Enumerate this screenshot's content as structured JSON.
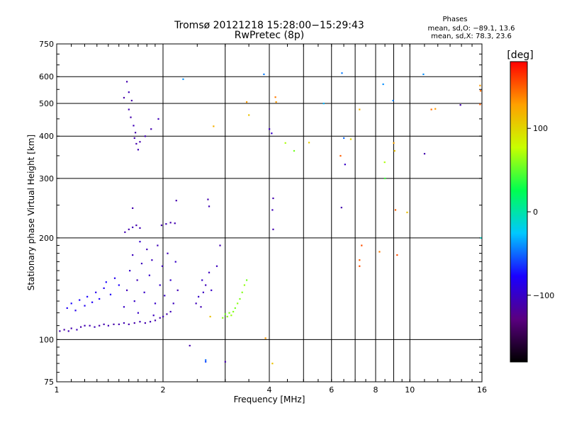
{
  "chart_data": {
    "type": "scatter",
    "title": "Tromsø 20121218 15:28:00−15:29:43",
    "subtitle": "RwPretec (8p)",
    "xlabel": "Frequency [MHz]",
    "ylabel": "Stationary phase Virtual Height [km]",
    "xscale": "log",
    "yscale": "log",
    "xlim": [
      1,
      16
    ],
    "ylim": [
      75,
      750
    ],
    "grid": true,
    "xticks": [
      1,
      2,
      4,
      6,
      8,
      10,
      16
    ],
    "xtick_labels": [
      "1",
      "2",
      "4",
      "6",
      "8",
      "10",
      "16"
    ],
    "x_minor_gridlines": [
      3,
      5,
      7,
      9
    ],
    "yticks": [
      75,
      100,
      200,
      300,
      400,
      500,
      600,
      750
    ],
    "ytick_labels": [
      "75",
      "100",
      "200",
      "300",
      "400",
      "500",
      "600",
      "750"
    ],
    "phases_box": {
      "title": "Phases",
      "line_o": "mean, sd,O: −89.1, 13.6",
      "line_x": "mean, sd,X: 78.3, 23.6"
    },
    "colorbar": {
      "label": "[deg]",
      "ticks": [
        100,
        0,
        -100
      ],
      "tick_labels": [
        "100",
        "0",
        "−100"
      ],
      "range": [
        -180,
        180
      ],
      "stops": [
        "#000000",
        "#5a0080",
        "#1a00ff",
        "#00c8ff",
        "#00ff50",
        "#c8ff00",
        "#ffa000",
        "#ff0000"
      ]
    },
    "points": [
      {
        "x": 1.02,
        "y": 106,
        "p": -110
      },
      {
        "x": 1.05,
        "y": 107,
        "p": -112
      },
      {
        "x": 1.08,
        "y": 106,
        "p": -108
      },
      {
        "x": 1.1,
        "y": 108,
        "p": -110
      },
      {
        "x": 1.14,
        "y": 107,
        "p": -105
      },
      {
        "x": 1.17,
        "y": 109,
        "p": -112
      },
      {
        "x": 1.2,
        "y": 110,
        "p": -108
      },
      {
        "x": 1.24,
        "y": 110,
        "p": -110
      },
      {
        "x": 1.28,
        "y": 109,
        "p": -106
      },
      {
        "x": 1.32,
        "y": 110,
        "p": -112
      },
      {
        "x": 1.36,
        "y": 111,
        "p": -110
      },
      {
        "x": 1.4,
        "y": 110,
        "p": -108
      },
      {
        "x": 1.45,
        "y": 111,
        "p": -112
      },
      {
        "x": 1.5,
        "y": 111,
        "p": -110
      },
      {
        "x": 1.55,
        "y": 112,
        "p": -108
      },
      {
        "x": 1.6,
        "y": 111,
        "p": -110
      },
      {
        "x": 1.66,
        "y": 112,
        "p": -112
      },
      {
        "x": 1.72,
        "y": 113,
        "p": -108
      },
      {
        "x": 1.78,
        "y": 112,
        "p": -110
      },
      {
        "x": 1.84,
        "y": 113,
        "p": -106
      },
      {
        "x": 1.9,
        "y": 114,
        "p": -110
      },
      {
        "x": 1.96,
        "y": 116,
        "p": -112
      },
      {
        "x": 2.0,
        "y": 117,
        "p": -108
      },
      {
        "x": 2.05,
        "y": 119,
        "p": -110
      },
      {
        "x": 2.1,
        "y": 121,
        "p": -106
      },
      {
        "x": 1.07,
        "y": 124,
        "p": -80
      },
      {
        "x": 1.1,
        "y": 128,
        "p": -75
      },
      {
        "x": 1.13,
        "y": 122,
        "p": -85
      },
      {
        "x": 1.16,
        "y": 131,
        "p": -78
      },
      {
        "x": 1.2,
        "y": 126,
        "p": -82
      },
      {
        "x": 1.22,
        "y": 134,
        "p": -76
      },
      {
        "x": 1.26,
        "y": 129,
        "p": -80
      },
      {
        "x": 1.29,
        "y": 138,
        "p": -84
      },
      {
        "x": 1.32,
        "y": 132,
        "p": -78
      },
      {
        "x": 1.36,
        "y": 142,
        "p": -82
      },
      {
        "x": 1.38,
        "y": 148,
        "p": -76
      },
      {
        "x": 1.42,
        "y": 136,
        "p": -80
      },
      {
        "x": 1.46,
        "y": 152,
        "p": -84
      },
      {
        "x": 1.5,
        "y": 145,
        "p": -78
      },
      {
        "x": 1.55,
        "y": 125,
        "p": -100
      },
      {
        "x": 1.58,
        "y": 140,
        "p": -105
      },
      {
        "x": 1.61,
        "y": 160,
        "p": -98
      },
      {
        "x": 1.64,
        "y": 178,
        "p": -104
      },
      {
        "x": 1.66,
        "y": 130,
        "p": -100
      },
      {
        "x": 1.69,
        "y": 150,
        "p": -106
      },
      {
        "x": 1.72,
        "y": 195,
        "p": -98
      },
      {
        "x": 1.74,
        "y": 168,
        "p": -104
      },
      {
        "x": 1.77,
        "y": 138,
        "p": -100
      },
      {
        "x": 1.8,
        "y": 185,
        "p": -106
      },
      {
        "x": 1.83,
        "y": 155,
        "p": -98
      },
      {
        "x": 1.86,
        "y": 172,
        "p": -104
      },
      {
        "x": 1.9,
        "y": 128,
        "p": -100
      },
      {
        "x": 1.93,
        "y": 190,
        "p": -106
      },
      {
        "x": 1.96,
        "y": 145,
        "p": -98
      },
      {
        "x": 1.99,
        "y": 165,
        "p": -104
      },
      {
        "x": 2.02,
        "y": 135,
        "p": -100
      },
      {
        "x": 2.06,
        "y": 180,
        "p": -106
      },
      {
        "x": 2.1,
        "y": 150,
        "p": -98
      },
      {
        "x": 2.14,
        "y": 128,
        "p": -104
      },
      {
        "x": 2.17,
        "y": 170,
        "p": -100
      },
      {
        "x": 2.2,
        "y": 140,
        "p": -106
      },
      {
        "x": 1.7,
        "y": 120,
        "p": -100
      },
      {
        "x": 1.88,
        "y": 118,
        "p": -104
      },
      {
        "x": 1.56,
        "y": 208,
        "p": -108
      },
      {
        "x": 1.6,
        "y": 212,
        "p": -110
      },
      {
        "x": 1.64,
        "y": 215,
        "p": -106
      },
      {
        "x": 1.68,
        "y": 218,
        "p": -110
      },
      {
        "x": 1.72,
        "y": 214,
        "p": -108
      },
      {
        "x": 1.98,
        "y": 218,
        "p": -110
      },
      {
        "x": 2.04,
        "y": 220,
        "p": -106
      },
      {
        "x": 2.1,
        "y": 222,
        "p": -110
      },
      {
        "x": 2.16,
        "y": 221,
        "p": -108
      },
      {
        "x": 1.64,
        "y": 245,
        "p": -110
      },
      {
        "x": 1.58,
        "y": 580,
        "p": -110
      },
      {
        "x": 1.6,
        "y": 540,
        "p": -105
      },
      {
        "x": 1.63,
        "y": 510,
        "p": -112
      },
      {
        "x": 1.6,
        "y": 480,
        "p": -108
      },
      {
        "x": 1.62,
        "y": 455,
        "p": -110
      },
      {
        "x": 1.65,
        "y": 430,
        "p": -106
      },
      {
        "x": 1.67,
        "y": 410,
        "p": -112
      },
      {
        "x": 1.66,
        "y": 395,
        "p": -108
      },
      {
        "x": 1.68,
        "y": 380,
        "p": -110
      },
      {
        "x": 1.7,
        "y": 365,
        "p": -106
      },
      {
        "x": 1.72,
        "y": 385,
        "p": -110
      },
      {
        "x": 1.78,
        "y": 400,
        "p": -108
      },
      {
        "x": 1.85,
        "y": 420,
        "p": -110
      },
      {
        "x": 1.94,
        "y": 450,
        "p": -106
      },
      {
        "x": 1.55,
        "y": 520,
        "p": -112
      },
      {
        "x": 2.48,
        "y": 128,
        "p": -105
      },
      {
        "x": 2.52,
        "y": 134,
        "p": -100
      },
      {
        "x": 2.56,
        "y": 125,
        "p": -108
      },
      {
        "x": 2.6,
        "y": 138,
        "p": -102
      },
      {
        "x": 2.64,
        "y": 145,
        "p": -106
      },
      {
        "x": 2.58,
        "y": 150,
        "p": -100
      },
      {
        "x": 2.7,
        "y": 158,
        "p": -104
      },
      {
        "x": 2.74,
        "y": 140,
        "p": -100
      },
      {
        "x": 2.84,
        "y": 165,
        "p": -104
      },
      {
        "x": 2.9,
        "y": 190,
        "p": -108
      },
      {
        "x": 2.95,
        "y": 116,
        "p": 60
      },
      {
        "x": 3.0,
        "y": 119,
        "p": 55
      },
      {
        "x": 3.04,
        "y": 117,
        "p": 62
      },
      {
        "x": 3.08,
        "y": 120,
        "p": 58
      },
      {
        "x": 3.12,
        "y": 118,
        "p": 65
      },
      {
        "x": 3.16,
        "y": 121,
        "p": 60
      },
      {
        "x": 3.2,
        "y": 124,
        "p": 56
      },
      {
        "x": 3.25,
        "y": 128,
        "p": 62
      },
      {
        "x": 3.3,
        "y": 132,
        "p": 58
      },
      {
        "x": 3.35,
        "y": 138,
        "p": 60
      },
      {
        "x": 3.4,
        "y": 145,
        "p": 64
      },
      {
        "x": 3.45,
        "y": 150,
        "p": 55
      },
      {
        "x": 2.72,
        "y": 117,
        "p": 110
      },
      {
        "x": 2.68,
        "y": 260,
        "p": -110
      },
      {
        "x": 2.7,
        "y": 248,
        "p": -106
      },
      {
        "x": 2.18,
        "y": 258,
        "p": -110
      },
      {
        "x": 2.28,
        "y": 590,
        "p": -40
      },
      {
        "x": 2.78,
        "y": 428,
        "p": 120
      },
      {
        "x": 3.45,
        "y": 505,
        "p": 130
      },
      {
        "x": 3.5,
        "y": 462,
        "p": 110
      },
      {
        "x": 4.0,
        "y": 420,
        "p": -105
      },
      {
        "x": 4.06,
        "y": 408,
        "p": -100
      },
      {
        "x": 4.1,
        "y": 262,
        "p": -110
      },
      {
        "x": 4.08,
        "y": 242,
        "p": -106
      },
      {
        "x": 4.1,
        "y": 212,
        "p": -110
      },
      {
        "x": 4.16,
        "y": 522,
        "p": 140
      },
      {
        "x": 4.18,
        "y": 505,
        "p": 130
      },
      {
        "x": 4.44,
        "y": 382,
        "p": 70
      },
      {
        "x": 4.7,
        "y": 362,
        "p": 55
      },
      {
        "x": 5.18,
        "y": 383,
        "p": 105
      },
      {
        "x": 5.7,
        "y": 500,
        "p": -30
      },
      {
        "x": 3.86,
        "y": 610,
        "p": -45
      },
      {
        "x": 6.4,
        "y": 246,
        "p": -110
      },
      {
        "x": 6.36,
        "y": 350,
        "p": 150
      },
      {
        "x": 6.42,
        "y": 615,
        "p": -45
      },
      {
        "x": 6.5,
        "y": 395,
        "p": -50
      },
      {
        "x": 6.55,
        "y": 330,
        "p": -100
      },
      {
        "x": 6.8,
        "y": 392,
        "p": 100
      },
      {
        "x": 7.2,
        "y": 480,
        "p": 120
      },
      {
        "x": 7.3,
        "y": 190,
        "p": 155
      },
      {
        "x": 7.2,
        "y": 172,
        "p": 150
      },
      {
        "x": 7.2,
        "y": 165,
        "p": 155
      },
      {
        "x": 8.2,
        "y": 182,
        "p": 140
      },
      {
        "x": 8.4,
        "y": 570,
        "p": -40
      },
      {
        "x": 8.5,
        "y": 300,
        "p": 40
      },
      {
        "x": 8.48,
        "y": 335,
        "p": 70
      },
      {
        "x": 8.96,
        "y": 510,
        "p": -45
      },
      {
        "x": 9.0,
        "y": 382,
        "p": 125
      },
      {
        "x": 9.05,
        "y": 362,
        "p": 110
      },
      {
        "x": 9.1,
        "y": 242,
        "p": 150
      },
      {
        "x": 9.2,
        "y": 178,
        "p": 155
      },
      {
        "x": 9.82,
        "y": 238,
        "p": 110
      },
      {
        "x": 10.92,
        "y": 610,
        "p": -40
      },
      {
        "x": 11.0,
        "y": 355,
        "p": -110
      },
      {
        "x": 11.5,
        "y": 480,
        "p": 145
      },
      {
        "x": 11.8,
        "y": 482,
        "p": 130
      },
      {
        "x": 13.9,
        "y": 495,
        "p": -110
      },
      {
        "x": 15.8,
        "y": 565,
        "p": 130
      },
      {
        "x": 15.85,
        "y": 545,
        "p": 145
      },
      {
        "x": 15.8,
        "y": 497,
        "p": 150
      },
      {
        "x": 15.9,
        "y": 200,
        "p": -10
      },
      {
        "x": 2.38,
        "y": 96,
        "p": -110
      },
      {
        "x": 2.64,
        "y": 87,
        "p": -50
      },
      {
        "x": 2.64,
        "y": 86,
        "p": -60
      },
      {
        "x": 3.0,
        "y": 86,
        "p": -110
      },
      {
        "x": 3.9,
        "y": 101,
        "p": 130
      },
      {
        "x": 4.08,
        "y": 85,
        "p": 110
      }
    ]
  }
}
